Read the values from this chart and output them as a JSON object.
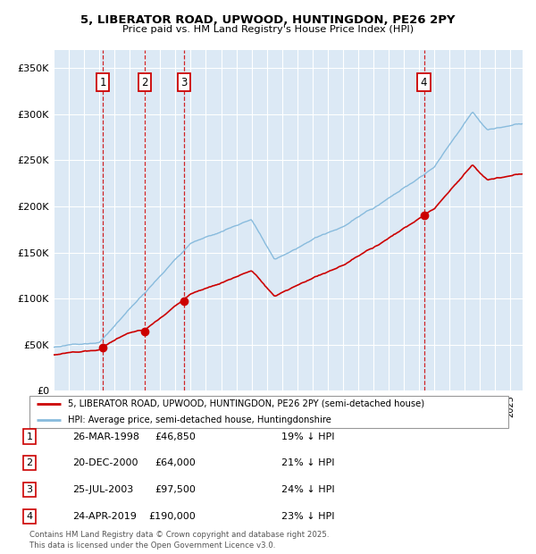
{
  "title": "5, LIBERATOR ROAD, UPWOOD, HUNTINGDON, PE26 2PY",
  "subtitle": "Price paid vs. HM Land Registry's House Price Index (HPI)",
  "background_color": "#ffffff",
  "plot_bg_color": "#dce9f5",
  "hpi_color": "#88bbdd",
  "price_color": "#cc0000",
  "marker_color": "#cc0000",
  "vline_color": "#cc0000",
  "yticks": [
    0,
    50000,
    100000,
    150000,
    200000,
    250000,
    300000,
    350000
  ],
  "ytick_labels": [
    "£0",
    "£50K",
    "£100K",
    "£150K",
    "£200K",
    "£250K",
    "£300K",
    "£350K"
  ],
  "xmin": 1995.0,
  "xmax": 2025.8,
  "ymin": 0,
  "ymax": 370000,
  "transactions": [
    {
      "label": "1",
      "date": 1998.23,
      "price": 46850
    },
    {
      "label": "2",
      "date": 2000.97,
      "price": 64000
    },
    {
      "label": "3",
      "date": 2003.56,
      "price": 97500
    },
    {
      "label": "4",
      "date": 2019.32,
      "price": 190000
    }
  ],
  "transaction_display": [
    {
      "num": "1",
      "date_str": "26-MAR-1998",
      "price_str": "£46,850",
      "hpi_str": "19% ↓ HPI"
    },
    {
      "num": "2",
      "date_str": "20-DEC-2000",
      "price_str": "£64,000",
      "hpi_str": "21% ↓ HPI"
    },
    {
      "num": "3",
      "date_str": "25-JUL-2003",
      "price_str": "£97,500",
      "hpi_str": "24% ↓ HPI"
    },
    {
      "num": "4",
      "date_str": "24-APR-2019",
      "price_str": "£190,000",
      "hpi_str": "23% ↓ HPI"
    }
  ],
  "legend_line1": "5, LIBERATOR ROAD, UPWOOD, HUNTINGDON, PE26 2PY (semi-detached house)",
  "legend_line2": "HPI: Average price, semi-detached house, Huntingdonshire",
  "footer": "Contains HM Land Registry data © Crown copyright and database right 2025.\nThis data is licensed under the Open Government Licence v3.0."
}
